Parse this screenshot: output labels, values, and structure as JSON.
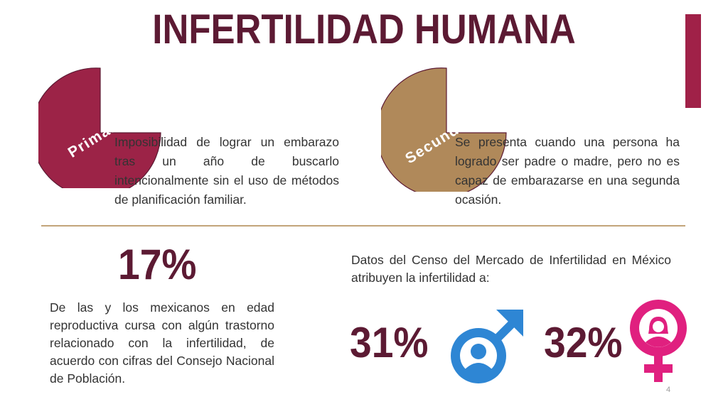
{
  "header": {
    "title": "INFERTILIDAD HUMANA"
  },
  "primary": {
    "label": "Primaria",
    "description": "Imposibilidad de lograr un embarazo tras un año de buscarlo intencionalmente sin el uso de métodos de planificación familiar.",
    "color": "#9c2347"
  },
  "secondary": {
    "label": "Secundaria",
    "description": "Se presenta cuando una persona ha logrado ser padre o madre, pero no es capaz de embarazarse en una segunda ocasión.",
    "color": "#b0895a"
  },
  "stat_population": {
    "value": "17%",
    "description": "De las y los mexicanos en edad reproductiva cursa con algún trastorno relacionado con la infertilidad, de acuerdo con cifras del Consejo Nacional de Población."
  },
  "census": {
    "intro": "Datos del Censo del Mercado de Infertilidad en México atribuyen la infertilidad a:",
    "male": {
      "value": "31%",
      "icon": "male-symbol-icon",
      "color": "#2e86d4"
    },
    "female": {
      "value": "32%",
      "icon": "female-symbol-icon",
      "color": "#e0207f"
    }
  },
  "footer": {
    "page_number": "4"
  }
}
